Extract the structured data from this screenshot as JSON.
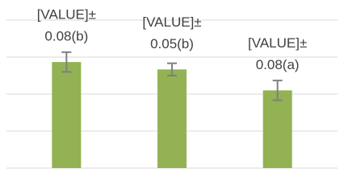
{
  "chart_data": {
    "type": "bar",
    "categories": [
      null,
      null,
      null
    ],
    "values": [
      0.86,
      0.8,
      0.63
    ],
    "errors": [
      0.08,
      0.05,
      0.08
    ],
    "labels": [
      [
        "[VALUE]±",
        "0.08(b)"
      ],
      [
        "[VALUE]±",
        "0.05(b)"
      ],
      [
        "[VALUE]±",
        "0.08(a)"
      ]
    ],
    "color": "#92b254",
    "error_color": "#7f7f7f",
    "ylim": [
      0,
      1.2
    ],
    "yticks": [
      0,
      0.3,
      0.6,
      0.9,
      1.2
    ],
    "grid": true
  }
}
